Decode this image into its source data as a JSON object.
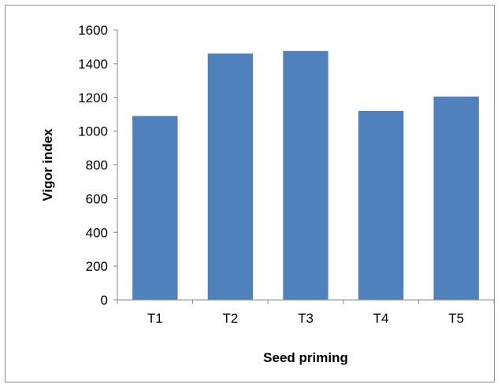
{
  "chart_data": {
    "type": "bar",
    "title": "",
    "xlabel": "Seed priming",
    "ylabel": "Vigor index",
    "categories": [
      "T1",
      "T2",
      "T3",
      "T4",
      "T5"
    ],
    "values": [
      1090,
      1460,
      1475,
      1120,
      1205
    ],
    "ylim": [
      0,
      1600
    ],
    "yticks": [
      0,
      200,
      400,
      600,
      800,
      1000,
      1200,
      1400,
      1600
    ],
    "grid": false,
    "legend": "none",
    "bar_color": "#4f81bd",
    "axis_color": "#868686"
  }
}
